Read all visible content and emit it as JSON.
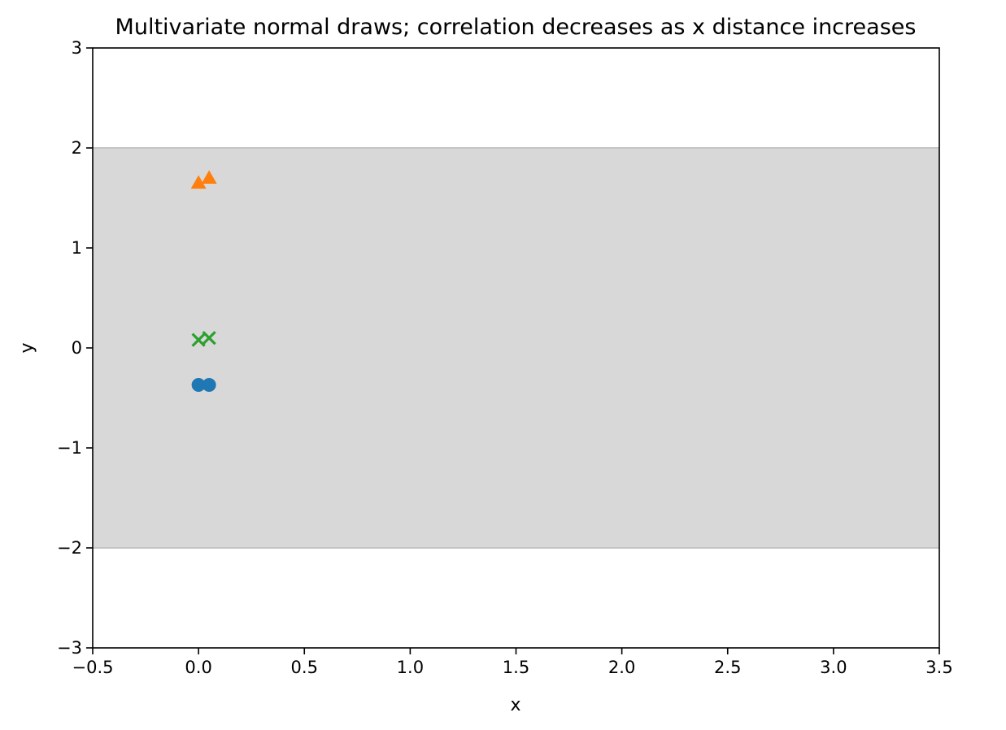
{
  "chart_data": {
    "type": "scatter",
    "title": "Multivariate normal draws; correlation decreases as x distance increases",
    "xlabel": "x",
    "ylabel": "y",
    "xlim": [
      -0.5,
      3.5
    ],
    "ylim": [
      -3,
      3
    ],
    "xticks": [
      -0.5,
      0.0,
      0.5,
      1.0,
      1.5,
      2.0,
      2.5,
      3.0,
      3.5
    ],
    "xtick_labels": [
      "−0.5",
      "0.0",
      "0.5",
      "1.0",
      "1.5",
      "2.0",
      "2.5",
      "3.0",
      "3.5"
    ],
    "yticks": [
      -3,
      -2,
      -1,
      0,
      1,
      2,
      3
    ],
    "ytick_labels": [
      "−3",
      "−2",
      "−1",
      "0",
      "1",
      "2",
      "3"
    ],
    "grid": false,
    "legend": "none",
    "band": {
      "y0": -2,
      "y1": 2,
      "color": "#d8d8d8",
      "edge_color": "#c4c4c4"
    },
    "series": [
      {
        "marker": "circle",
        "color": "#1f77b4",
        "x": [
          0.0,
          0.05
        ],
        "y": [
          -0.37,
          -0.37
        ]
      },
      {
        "marker": "triangle",
        "color": "#ff7f0e",
        "x": [
          0.0,
          0.05
        ],
        "y": [
          1.65,
          1.7
        ]
      },
      {
        "marker": "x",
        "color": "#2ca02c",
        "x": [
          0.0,
          0.05
        ],
        "y": [
          0.08,
          0.1
        ]
      }
    ]
  }
}
